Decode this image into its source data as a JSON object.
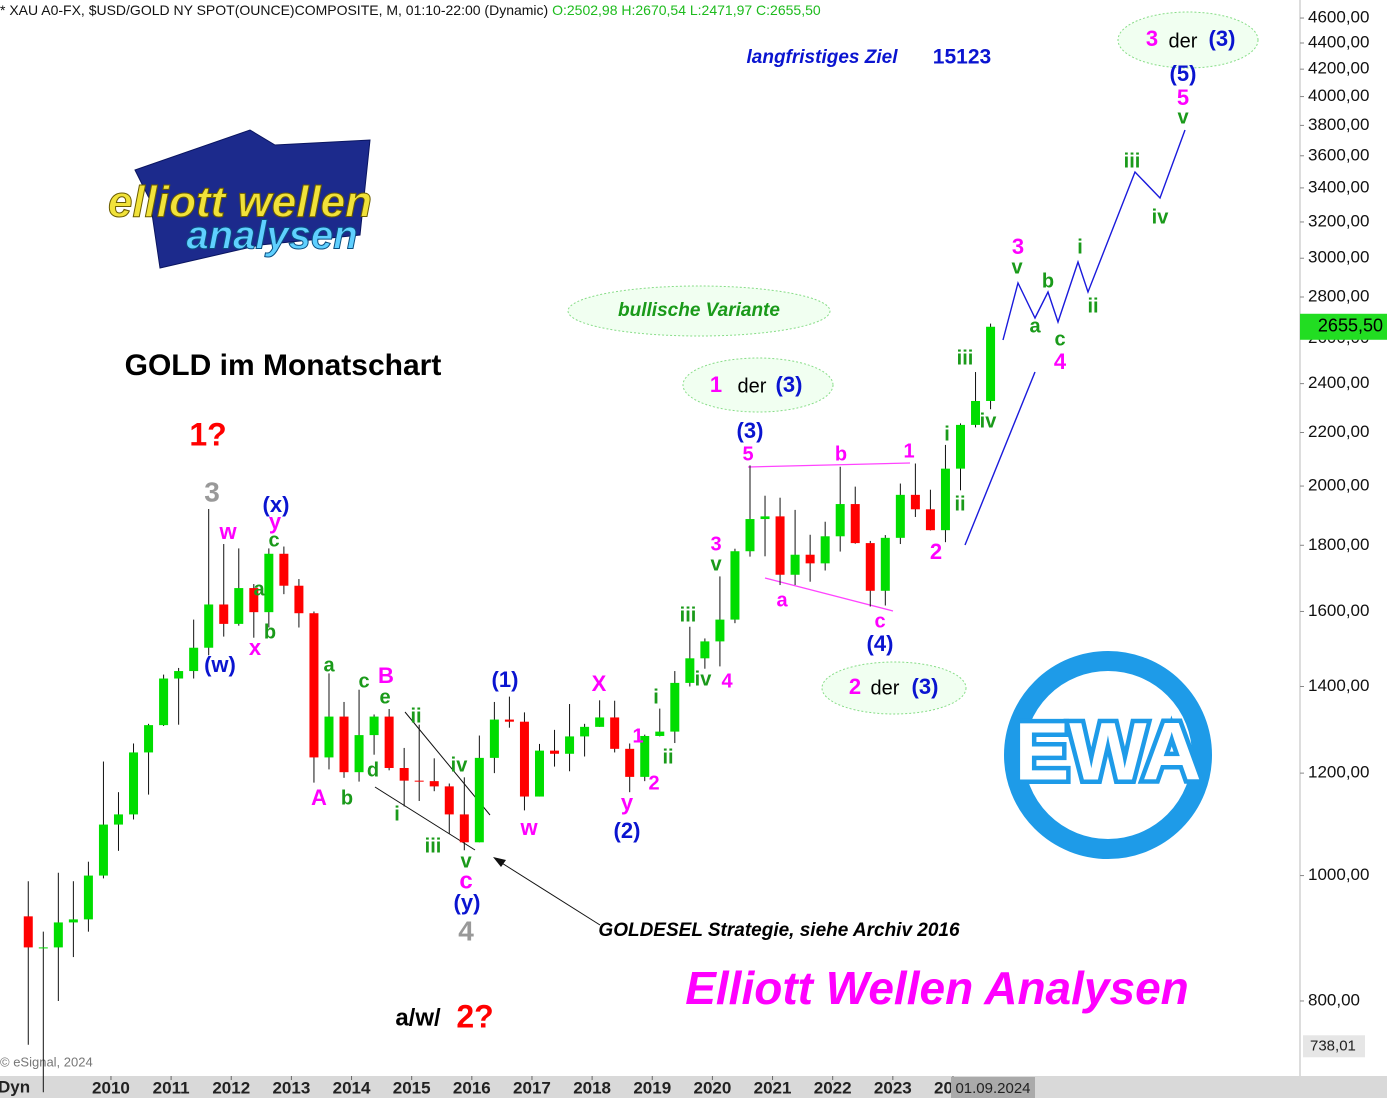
{
  "header": {
    "instrument": "* XAU A0-FX, $USD/GOLD NY SPOT(OUNCE)COMPOSITE, M, 01:10-22:00 (Dynamic)",
    "ohlc": "O:2502,98 H:2670,54 L:2471,97 C:2655,50"
  },
  "logo": {
    "line1": "elliott wellen",
    "line2": "analysen"
  },
  "badge": "EWA",
  "copyright": "© eSignal, 2024",
  "corner_label": "Dyn",
  "annotations": [
    "langfristiges Ziel",
    "15123",
    "(5)",
    "5",
    "v",
    "iii",
    "iv",
    "3",
    "v",
    "b",
    "i",
    "a",
    "ii",
    "c",
    "4",
    "bullische Variante",
    "(3)",
    "5",
    "b",
    "1",
    "iii",
    "i",
    "iv",
    "ii",
    "2",
    "a",
    "c",
    "(4)",
    "3",
    "v",
    "iii",
    "iv",
    "4",
    "i",
    "1",
    "ii",
    "2",
    "y",
    "(2)",
    "X",
    "w",
    "(1)",
    "ii",
    "iv",
    "i",
    "iii",
    "v",
    "c",
    "(y)",
    "4",
    "B",
    "e",
    "c",
    "a",
    "d",
    "A",
    "b",
    "3",
    "w",
    "(x)",
    "y",
    "c",
    "a",
    "b",
    "x",
    "(w)",
    "1?",
    "GOLDESEL Strategie, siehe Archiv 2016",
    "Elliott Wellen Analysen",
    "3",
    "der",
    "(3)",
    "1",
    "der",
    "(3)",
    "2",
    "der",
    "(3)",
    "a/w/",
    "2?"
  ],
  "chart_data": {
    "type": "candlestick",
    "title": "GOLD im Monatschart",
    "x": [
      2008.625,
      2008.875,
      2009.125,
      2009.375,
      2009.625,
      2009.875,
      2010.125,
      2010.375,
      2010.625,
      2010.875,
      2011.125,
      2011.375,
      2011.625,
      2011.875,
      2012.125,
      2012.375,
      2012.625,
      2012.875,
      2013.125,
      2013.375,
      2013.625,
      2013.875,
      2014.125,
      2014.375,
      2014.625,
      2014.875,
      2015.125,
      2015.375,
      2015.625,
      2015.875,
      2016.125,
      2016.375,
      2016.625,
      2016.875,
      2017.125,
      2017.375,
      2017.625,
      2017.875,
      2018.125,
      2018.375,
      2018.625,
      2018.875,
      2019.125,
      2019.375,
      2019.625,
      2019.875,
      2020.125,
      2020.375,
      2020.625,
      2020.875,
      2021.125,
      2021.375,
      2021.625,
      2021.875,
      2022.125,
      2022.375,
      2022.625,
      2022.875,
      2023.125,
      2023.375,
      2023.625,
      2023.875,
      2024.125,
      2024.375,
      2024.625
    ],
    "open": [
      930,
      880,
      880,
      920,
      925,
      1000,
      1095,
      1115,
      1245,
      1307,
      1420,
      1439,
      1500,
      1620,
      1565,
      1668,
      1598,
      1773,
      1675,
      1595,
      1234,
      1327,
      1202,
      1284,
      1327,
      1211,
      1184,
      1183,
      1172,
      1115,
      1061,
      1233,
      1320,
      1315,
      1151,
      1249,
      1242,
      1281,
      1303,
      1325,
      1253,
      1192,
      1282,
      1292,
      1409,
      1472,
      1517,
      1577,
      1781,
      1886,
      1895,
      1708,
      1770,
      1743,
      1829,
      1937,
      1807,
      1660,
      1824,
      1969,
      1919,
      1849,
      2063,
      2230,
      2327
    ],
    "high": [
      990,
      905,
      1005,
      990,
      1025,
      1225,
      1160,
      1265,
      1310,
      1430,
      1447,
      1577,
      1920,
      1804,
      1790,
      1680,
      1790,
      1796,
      1695,
      1600,
      1433,
      1362,
      1392,
      1332,
      1345,
      1255,
      1308,
      1232,
      1178,
      1191,
      1283,
      1362,
      1375,
      1337,
      1264,
      1296,
      1357,
      1310,
      1366,
      1365,
      1265,
      1285,
      1346,
      1439,
      1557,
      1525,
      1703,
      1789,
      2075,
      1966,
      1959,
      1917,
      1834,
      1877,
      2070,
      1998,
      1814,
      1833,
      2009,
      2082,
      1987,
      2152,
      2236,
      2450,
      2670.54
    ],
    "low": [
      740,
      680,
      800,
      865,
      905,
      995,
      1045,
      1105,
      1155,
      1305,
      1308,
      1420,
      1480,
      1530,
      1560,
      1527,
      1555,
      1650,
      1555,
      1180,
      1208,
      1190,
      1182,
      1240,
      1206,
      1131,
      1142,
      1162,
      1077,
      1046,
      1061,
      1200,
      1301,
      1123,
      1151,
      1214,
      1204,
      1236,
      1303,
      1245,
      1160,
      1183,
      1281,
      1266,
      1400,
      1445,
      1451,
      1567,
      1764,
      1765,
      1677,
      1677,
      1687,
      1721,
      1780,
      1805,
      1614,
      1617,
      1804,
      1893,
      1848,
      1810,
      1985,
      2220,
      2293
    ],
    "close": [
      880,
      880,
      920,
      925,
      1000,
      1095,
      1115,
      1245,
      1307,
      1420,
      1439,
      1500,
      1620,
      1565,
      1668,
      1598,
      1773,
      1675,
      1595,
      1234,
      1327,
      1202,
      1284,
      1327,
      1211,
      1184,
      1183,
      1172,
      1115,
      1061,
      1233,
      1320,
      1315,
      1151,
      1249,
      1242,
      1281,
      1303,
      1325,
      1253,
      1192,
      1282,
      1292,
      1409,
      1472,
      1517,
      1577,
      1781,
      1886,
      1895,
      1708,
      1770,
      1743,
      1829,
      1937,
      1807,
      1660,
      1824,
      1969,
      1919,
      1849,
      2063,
      2230,
      2327,
      2655.5
    ],
    "up_color": "#00dd00",
    "down_color": "#ff0000",
    "xlim": [
      2008.155,
      2029.77
    ],
    "xticks": [
      2010,
      2011,
      2012,
      2013,
      2014,
      2015,
      2016,
      2017,
      2018,
      2019,
      2020,
      2021,
      2022,
      2023,
      2024
    ],
    "ylim": [
      705,
      4750
    ],
    "log": true,
    "yticks": [
      {
        "value": 800,
        "label": "800,00"
      },
      {
        "value": 1000,
        "label": "1000,00"
      },
      {
        "value": 1200,
        "label": "1200,00"
      },
      {
        "value": 1400,
        "label": "1400,00"
      },
      {
        "value": 1600,
        "label": "1600,00"
      },
      {
        "value": 1800,
        "label": "1800,00"
      },
      {
        "value": 2000,
        "label": "2000,00"
      },
      {
        "value": 2200,
        "label": "2200,00"
      },
      {
        "value": 2400,
        "label": "2400,00"
      },
      {
        "value": 2600,
        "label": "2600,00"
      },
      {
        "value": 2800,
        "label": "2800,00"
      },
      {
        "value": 3000,
        "label": "3000,00"
      },
      {
        "value": 3200,
        "label": "3200,00"
      },
      {
        "value": 3400,
        "label": "3400,00"
      },
      {
        "value": 3600,
        "label": "3600,00"
      },
      {
        "value": 3800,
        "label": "3800,00"
      },
      {
        "value": 4000,
        "label": "4000,00"
      },
      {
        "value": 4200,
        "label": "4200,00"
      },
      {
        "value": 4400,
        "label": "4400,00"
      },
      {
        "value": 4600,
        "label": "4600,00"
      }
    ],
    "last_price": {
      "value": 2655.5,
      "label": "2655,50"
    },
    "scale_low": {
      "value": 738.01,
      "label": "738,01"
    },
    "cursor_date": "01.09.2024"
  }
}
